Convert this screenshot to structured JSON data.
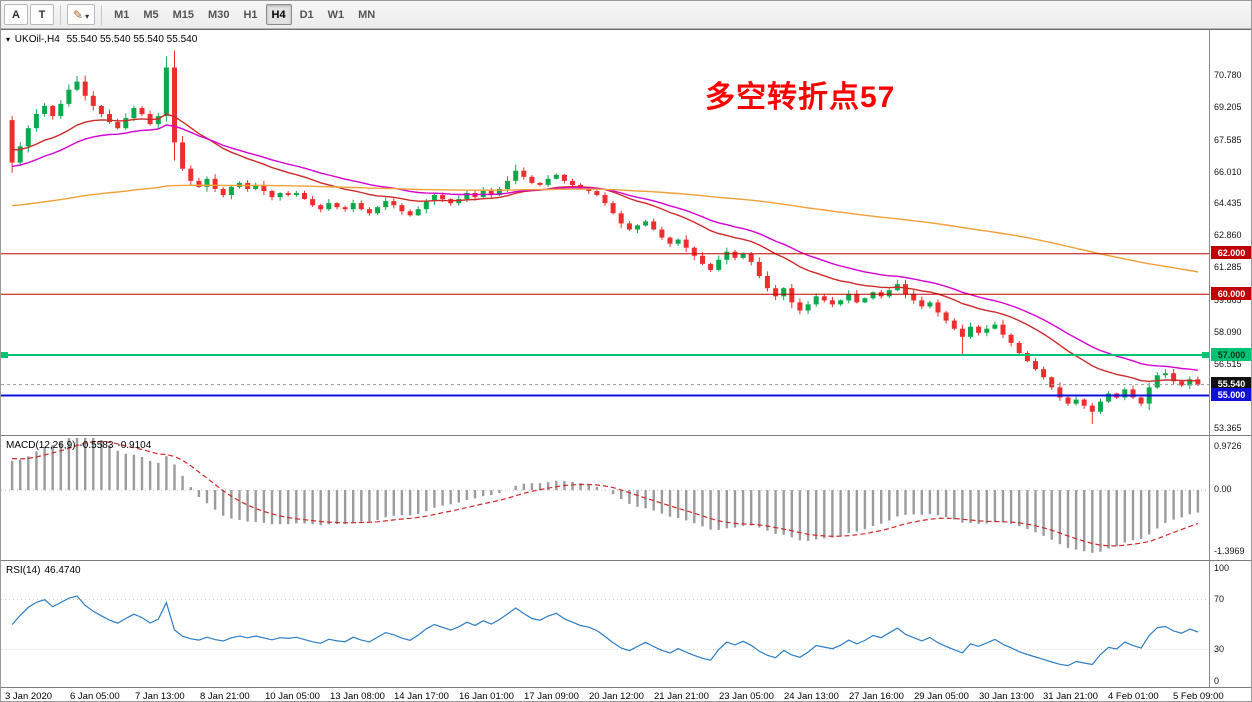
{
  "toolbar": {
    "tools": [
      {
        "name": "arrow-tool",
        "label": "A"
      },
      {
        "name": "text-tool",
        "label": "T"
      },
      {
        "name": "colors-tool",
        "icon": "pencil-icon",
        "caret": true
      }
    ],
    "timeframes": [
      {
        "label": "M1"
      },
      {
        "label": "M5"
      },
      {
        "label": "M15"
      },
      {
        "label": "M30"
      },
      {
        "label": "H1"
      },
      {
        "label": "H4",
        "active": true
      },
      {
        "label": "D1"
      },
      {
        "label": "W1"
      },
      {
        "label": "MN"
      }
    ]
  },
  "price_panel": {
    "title": {
      "symbol": "UKOil-,H4",
      "ohlc": "55.540 55.540 55.540 55.540"
    },
    "annotation": {
      "text": "多空转折点57",
      "color": "#fe0000"
    },
    "axis_ticks": [
      {
        "label": "70.780",
        "value": 70.78
      },
      {
        "label": "69.205",
        "value": 69.205
      },
      {
        "label": "67.585",
        "value": 67.585
      },
      {
        "label": "66.010",
        "value": 66.01
      },
      {
        "label": "64.435",
        "value": 64.435
      },
      {
        "label": "62.860",
        "value": 62.86
      },
      {
        "label": "61.285",
        "value": 61.285
      },
      {
        "label": "59.665",
        "value": 59.665
      },
      {
        "label": "58.090",
        "value": 58.09
      },
      {
        "label": "56.515",
        "value": 56.515
      },
      {
        "label": "53.365",
        "value": 53.365
      }
    ],
    "axis_badges": [
      {
        "label": "62.000",
        "value": 62.0,
        "bg": "#c00000",
        "fg": "#ffffff"
      },
      {
        "label": "60.000",
        "value": 60.0,
        "bg": "#c00000",
        "fg": "#ffffff"
      },
      {
        "label": "57.000",
        "value": 57.0,
        "bg": "#00c473",
        "fg": "#00331c"
      },
      {
        "label": "55.540",
        "value": 55.54,
        "bg": "#101010",
        "fg": "#ffffff"
      },
      {
        "label": "55.000",
        "value": 55.0,
        "bg": "#1010d8",
        "fg": "#ffffff"
      }
    ]
  },
  "macd_panel": {
    "label": "MACD(12,26,9)",
    "value1": "-0.5583",
    "value2": "-0.9104",
    "axis_ticks": [
      {
        "label": "0.9726",
        "value": 0.9726
      },
      {
        "label": "0.00",
        "value": 0
      },
      {
        "label": "-1.3969",
        "value": -1.3969
      }
    ],
    "domain": [
      -1.574,
      1.194
    ],
    "histogram_color": "#9b9b9b",
    "signal_color": "#d02828",
    "params": {
      "ema12_seed": 66.4,
      "ema26_seed": 65.7,
      "signal_seed": 0.72
    }
  },
  "rsi_panel": {
    "label": "RSI(14)",
    "value": "46.4740",
    "color": "#2d7dc3",
    "levels": [
      70,
      30
    ],
    "axis_ticks": [
      {
        "label": "100",
        "value": 100
      },
      {
        "label": "70",
        "value": 70
      },
      {
        "label": "30",
        "value": 30
      },
      {
        "label": "0",
        "value": 0
      }
    ]
  },
  "chart_data": {
    "type": "candlestick",
    "symbol": "UKOil-",
    "timeframe": "H4",
    "current_price": 55.54,
    "price_domain": [
      53.05,
      73.0
    ],
    "first_open": 68.6,
    "closes": [
      66.5,
      67.3,
      68.2,
      68.9,
      69.3,
      68.8,
      69.4,
      70.1,
      70.5,
      69.8,
      69.3,
      68.9,
      68.5,
      68.2,
      68.7,
      69.2,
      68.9,
      68.4,
      68.8,
      71.2,
      67.5,
      66.2,
      65.6,
      65.3,
      65.7,
      65.2,
      64.9,
      65.3,
      65.5,
      65.2,
      65.4,
      65.1,
      64.8,
      65.0,
      64.9,
      65.0,
      64.7,
      64.4,
      64.2,
      64.5,
      64.3,
      64.2,
      64.5,
      64.2,
      64.0,
      64.3,
      64.6,
      64.4,
      64.1,
      63.9,
      64.2,
      64.6,
      64.9,
      64.7,
      64.5,
      64.7,
      65.0,
      64.8,
      65.1,
      64.9,
      65.2,
      65.6,
      66.1,
      65.8,
      65.5,
      65.4,
      65.7,
      65.9,
      65.6,
      65.4,
      65.2,
      65.1,
      64.9,
      64.5,
      64.0,
      63.5,
      63.2,
      63.4,
      63.6,
      63.2,
      62.8,
      62.5,
      62.7,
      62.3,
      61.9,
      61.5,
      61.2,
      61.7,
      62.1,
      61.8,
      62.0,
      61.6,
      60.9,
      60.3,
      59.9,
      60.3,
      59.6,
      59.2,
      59.5,
      59.9,
      59.7,
      59.5,
      59.7,
      60.0,
      59.6,
      59.8,
      60.1,
      59.9,
      60.2,
      60.5,
      60.0,
      59.7,
      59.4,
      59.6,
      59.1,
      58.7,
      58.3,
      57.9,
      58.4,
      58.1,
      58.3,
      58.5,
      58.0,
      57.6,
      57.1,
      56.7,
      56.3,
      55.9,
      55.4,
      54.9,
      54.6,
      54.8,
      54.5,
      54.2,
      54.7,
      55.1,
      54.9,
      55.3,
      54.9,
      54.6,
      55.4,
      56.0,
      56.1,
      55.7,
      55.5,
      55.8,
      55.54
    ],
    "overrides": {
      "8": {
        "high": 70.78
      },
      "19": {
        "high": 71.75
      },
      "62": {
        "high": 66.4
      },
      "109": {
        "high": 60.72
      },
      "117": {
        "low": 56.95
      },
      "133": {
        "low": 53.6
      },
      "142": {
        "high": 56.3
      }
    },
    "candle_up_color": "#0ba94c",
    "candle_down_color": "#ee2e2e",
    "mas": [
      {
        "name": "ma-fast-red",
        "color": "#cf2a2a",
        "k": 0.1,
        "start": 67.2
      },
      {
        "name": "ma-mid-magenta",
        "color": "#d400d4",
        "k": 0.065,
        "start": 66.3
      },
      {
        "name": "ma-slow-orange",
        "color": "#efa036",
        "k": 0.012,
        "start": 64.35
      }
    ],
    "levels": [
      {
        "label": "62.000",
        "value": 62.0,
        "color": "#c00000",
        "width": 1
      },
      {
        "label": "60.000",
        "value": 60.0,
        "color": "#c00000",
        "width": 1
      },
      {
        "label": "57.000",
        "value": 57.0,
        "color": "#00c473",
        "width": 2,
        "edge_marks": true
      },
      {
        "label": "55.000",
        "value": 55.0,
        "color": "#1010d8",
        "width": 2
      }
    ],
    "time_labels": [
      "3 Jan 2020",
      "6 Jan 05:00",
      "7 Jan 13:00",
      "8 Jan 21:00",
      "10 Jan 05:00",
      "13 Jan 08:00",
      "14 Jan 17:00",
      "16 Jan 01:00",
      "17 Jan 09:00",
      "20 Jan 12:00",
      "21 Jan 21:00",
      "23 Jan 05:00",
      "24 Jan 13:00",
      "27 Jan 16:00",
      "29 Jan 05:00",
      "30 Jan 13:00",
      "31 Jan 21:00",
      "4 Feb 01:00",
      "5 Feb 09:00"
    ]
  }
}
